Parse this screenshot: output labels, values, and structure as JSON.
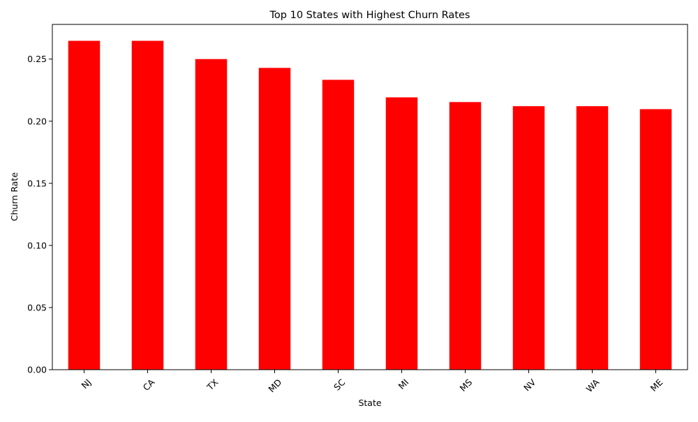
{
  "chart_data": {
    "type": "bar",
    "title": "Top 10 States with Highest Churn Rates",
    "xlabel": "State",
    "ylabel": "Churn Rate",
    "categories": [
      "NJ",
      "CA",
      "TX",
      "MD",
      "SC",
      "MI",
      "MS",
      "NV",
      "WA",
      "ME"
    ],
    "values": [
      0.2647,
      0.2647,
      0.25,
      0.2429,
      0.2333,
      0.2192,
      0.2154,
      0.2121,
      0.2121,
      0.2097
    ],
    "ylim": [
      0,
      0.2779
    ],
    "yticks": [
      "0.00",
      "0.05",
      "0.10",
      "0.15",
      "0.20",
      "0.25"
    ],
    "bar_color": "#ff0000",
    "grid": false,
    "legend": "none",
    "xtick_rotation": 45
  }
}
